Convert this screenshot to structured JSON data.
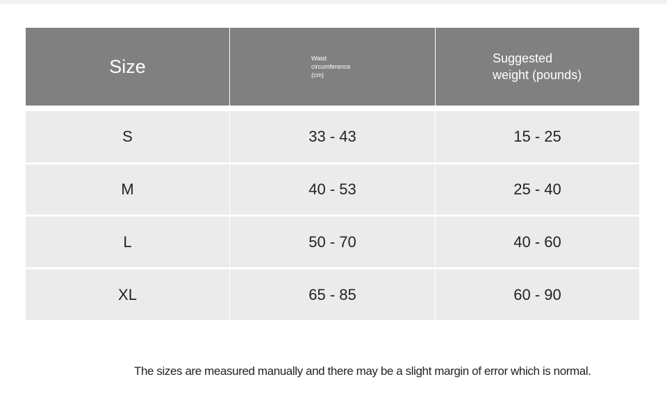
{
  "table": {
    "header": [
      "Size",
      "Waist circumference (cm)",
      "Suggested weight (pounds)"
    ],
    "rows": [
      [
        "S",
        "33 - 43",
        "15 - 25"
      ],
      [
        "M",
        "40 - 53",
        "25 - 40"
      ],
      [
        "L",
        "50 - 70",
        "40 - 60"
      ],
      [
        "XL",
        "65 - 85",
        "60 - 90"
      ]
    ]
  },
  "footnote": "The sizes are measured manually and there may be a slight margin of error which is normal."
}
